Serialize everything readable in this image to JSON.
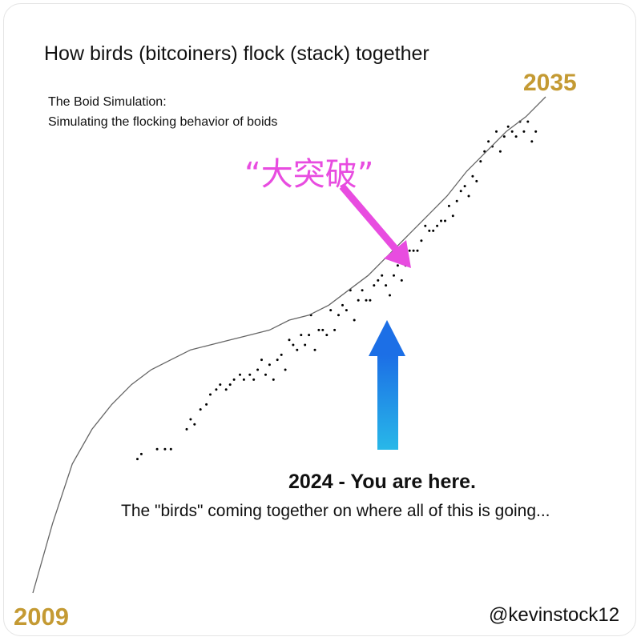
{
  "title": "How birds (bitcoiners) flock (stack) together",
  "subtitle_line1": "The Boid Simulation:",
  "subtitle_line2": "Simulating the flocking behavior of boids",
  "start_year_label": "2009",
  "end_year_label": "2035",
  "breakout_label": "“大突破”",
  "here_label": "2024 - You are here.",
  "here_caption": "The \"birds\" coming together on where all of this is going...",
  "handle": "@kevinstock12",
  "colors": {
    "year_gold": "#c49a33",
    "breakout_magenta": "#e84ce0",
    "arrow_blue_top": "#1c6fe6",
    "arrow_blue_bottom": "#28b8e8",
    "curve": "#666666",
    "dots": "#000000"
  },
  "chart_data": {
    "type": "scatter",
    "title": "How birds (bitcoiners) flock (stack) together",
    "xlabel": "",
    "ylabel": "",
    "xlim": [
      2009,
      2035
    ],
    "grid": false,
    "axes_visible": false,
    "series": [
      {
        "type": "line",
        "x": [
          2009,
          2010,
          2011,
          2012,
          2013,
          2014,
          2015,
          2016,
          2017,
          2018,
          2019,
          2020,
          2021,
          2022,
          2023,
          2024,
          2025,
          2026,
          2027,
          2028,
          2029,
          2030,
          2031,
          2032,
          2033,
          2034,
          2035
        ],
        "y": [
          0.0,
          0.14,
          0.26,
          0.33,
          0.38,
          0.42,
          0.45,
          0.47,
          0.49,
          0.5,
          0.51,
          0.52,
          0.53,
          0.55,
          0.56,
          0.58,
          0.61,
          0.64,
          0.68,
          0.72,
          0.76,
          0.8,
          0.85,
          0.89,
          0.93,
          0.96,
          1.0
        ]
      },
      {
        "type": "scatter",
        "x": [
          2014.3,
          2014.5,
          2015.3,
          2015.7,
          2016.0,
          2016.8,
          2017.0,
          2017.2,
          2017.5,
          2017.8,
          2018.0,
          2018.3,
          2018.5,
          2018.8,
          2019.0,
          2019.2,
          2019.5,
          2019.7,
          2020.0,
          2020.2,
          2020.4,
          2020.6,
          2020.8,
          2021.0,
          2021.2,
          2021.4,
          2021.6,
          2021.8,
          2022.0,
          2022.2,
          2022.4,
          2022.6,
          2022.8,
          2023.0,
          2023.1,
          2023.3,
          2023.5,
          2023.7,
          2023.9,
          2024.1,
          2024.3,
          2024.5,
          2024.7,
          2024.9,
          2025.1,
          2025.3,
          2025.5,
          2025.7,
          2025.9,
          2026.1,
          2026.3,
          2026.5,
          2026.7,
          2026.9,
          2027.1,
          2027.3,
          2027.5,
          2027.7,
          2027.9,
          2028.1,
          2028.3,
          2028.5,
          2028.7,
          2028.9,
          2029.1,
          2029.3,
          2029.5,
          2029.7,
          2029.9,
          2030.1,
          2030.3,
          2030.5,
          2030.7,
          2030.9,
          2031.1,
          2031.3,
          2031.5,
          2031.7,
          2031.9,
          2032.1,
          2032.3,
          2032.5,
          2032.7,
          2032.9,
          2033.1,
          2033.3,
          2033.5,
          2033.7,
          2033.9,
          2034.1,
          2034.3,
          2034.5
        ],
        "y": [
          0.27,
          0.28,
          0.29,
          0.29,
          0.29,
          0.33,
          0.35,
          0.34,
          0.37,
          0.38,
          0.4,
          0.41,
          0.42,
          0.41,
          0.42,
          0.43,
          0.44,
          0.43,
          0.44,
          0.43,
          0.45,
          0.47,
          0.44,
          0.46,
          0.43,
          0.47,
          0.48,
          0.45,
          0.51,
          0.5,
          0.49,
          0.52,
          0.5,
          0.52,
          0.56,
          0.49,
          0.53,
          0.53,
          0.52,
          0.57,
          0.53,
          0.56,
          0.58,
          0.57,
          0.61,
          0.55,
          0.59,
          0.61,
          0.59,
          0.59,
          0.62,
          0.63,
          0.64,
          0.62,
          0.6,
          0.64,
          0.66,
          0.63,
          0.66,
          0.69,
          0.69,
          0.69,
          0.71,
          0.74,
          0.73,
          0.73,
          0.74,
          0.75,
          0.75,
          0.78,
          0.76,
          0.79,
          0.81,
          0.82,
          0.8,
          0.84,
          0.83,
          0.87,
          0.89,
          0.91,
          0.9,
          0.93,
          0.89,
          0.92,
          0.94,
          0.93,
          0.92,
          0.95,
          0.93,
          0.95,
          0.91,
          0.93
        ]
      }
    ],
    "annotations": [
      {
        "text": "2009",
        "x": 2009
      },
      {
        "text": "2035",
        "x": 2035
      },
      {
        "text": "“大突破”",
        "x": 2025
      },
      {
        "text": "2024 - You are here.",
        "x": 2024
      }
    ]
  }
}
